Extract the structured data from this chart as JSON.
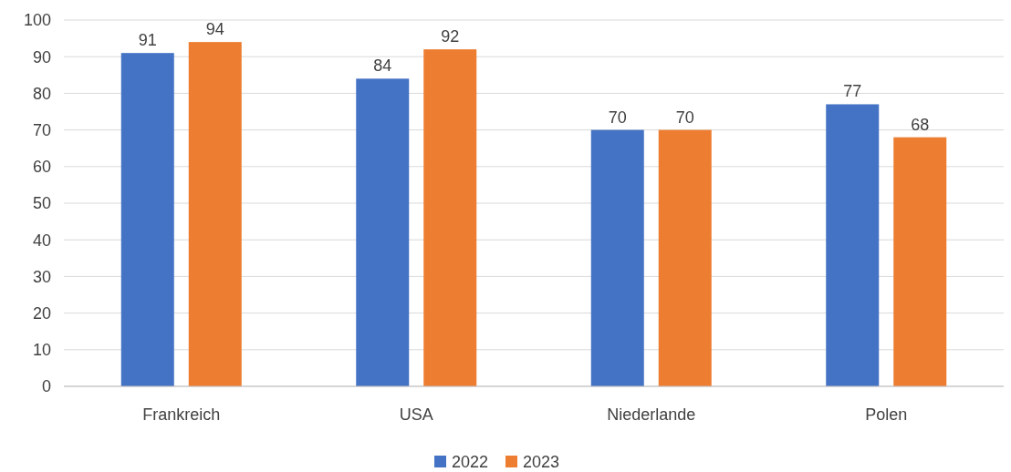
{
  "chart_data": {
    "type": "bar",
    "categories": [
      "Frankreich",
      "USA",
      "Niederlande",
      "Polen"
    ],
    "series": [
      {
        "name": "2022",
        "color": "#4472c4",
        "values": [
          91,
          84,
          70,
          77
        ]
      },
      {
        "name": "2023",
        "color": "#ed7d31",
        "values": [
          94,
          92,
          70,
          68
        ]
      }
    ],
    "ylim": [
      0,
      100
    ],
    "yticks": [
      0,
      10,
      20,
      30,
      40,
      50,
      60,
      70,
      80,
      90,
      100
    ],
    "grid": "y",
    "legend": "bottom",
    "data_labels": true
  }
}
